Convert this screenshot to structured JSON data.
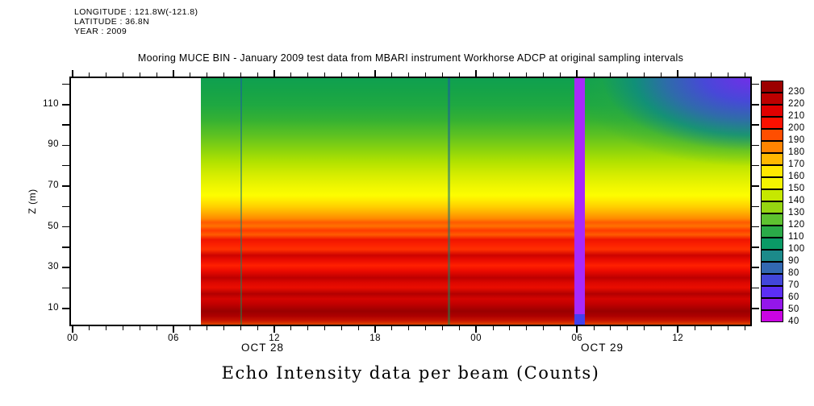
{
  "header": {
    "longitude": "LONGITUDE : 121.8W(-121.8)",
    "latitude": "LATITUDE : 36.8N",
    "year": "YEAR : 2009"
  },
  "title": "Mooring MUCE BIN - January 2009 test data from MBARI instrument Workhorse ADCP at original sampling intervals",
  "caption": "Echo Intensity data per beam (Counts)",
  "axes": {
    "y": {
      "label": "Z (m)",
      "major_ticks": [
        10,
        30,
        50,
        70,
        90,
        110
      ],
      "minor_ticks": [
        20,
        40,
        60,
        80,
        100,
        120
      ],
      "range_m": [
        2,
        123
      ]
    },
    "x": {
      "major_hours": [
        0,
        6,
        12,
        18,
        24,
        30,
        36
      ],
      "major_labels": [
        "00",
        "06",
        "12",
        "18",
        "00",
        "06",
        "12"
      ],
      "minor_interval_hours": 1,
      "total_hours": 40.4,
      "date_labels": [
        {
          "text": "OCT 28",
          "hour": 11.3
        },
        {
          "text": "OCT 29",
          "hour": 31.5
        }
      ]
    }
  },
  "colorbar": {
    "cells": [
      {
        "value": 230,
        "color": "#9c0000"
      },
      {
        "value": 220,
        "color": "#bc0000"
      },
      {
        "value": 210,
        "color": "#e00000"
      },
      {
        "value": 200,
        "color": "#fb1000"
      },
      {
        "value": 190,
        "color": "#ff4e00"
      },
      {
        "value": 180,
        "color": "#ff8400"
      },
      {
        "value": 170,
        "color": "#ffb800"
      },
      {
        "value": 160,
        "color": "#ffe800"
      },
      {
        "value": 150,
        "color": "#f4f400"
      },
      {
        "value": 140,
        "color": "#c6e800"
      },
      {
        "value": 130,
        "color": "#96d610"
      },
      {
        "value": 120,
        "color": "#5ec230"
      },
      {
        "value": 110,
        "color": "#2aaa48"
      },
      {
        "value": 100,
        "color": "#0a9a66"
      },
      {
        "value": 90,
        "color": "#1c8a8a"
      },
      {
        "value": 80,
        "color": "#3268b2"
      },
      {
        "value": 70,
        "color": "#4246da"
      },
      {
        "value": 60,
        "color": "#5c2ef4"
      },
      {
        "value": 50,
        "color": "#9416ea"
      },
      {
        "value": 40,
        "color": "#c904e2"
      }
    ]
  },
  "chart_data": {
    "type": "heatmap",
    "title": "Mooring MUCE BIN - January 2009 test data from MBARI instrument Workhorse ADCP at original sampling intervals",
    "subtitle_lines": [
      "LONGITUDE : 121.8W(-121.8)",
      "LATITUDE : 36.8N",
      "YEAR : 2009"
    ],
    "quantity": "Echo Intensity data per beam (Counts)",
    "xlabel_dates": [
      "OCT 28",
      "OCT 29"
    ],
    "x_range": [
      "OCT 28 00:00",
      "OCT 29 ~16:30"
    ],
    "ylabel": "Z (m)",
    "y_range_m": [
      2,
      123
    ],
    "colorbar_range_counts": [
      40,
      230
    ],
    "colorbar_step": 10,
    "data_start": "OCT 28 ~07:40 (white/no data before)",
    "missing_data_intervals": [
      {
        "from": "OCT 28 00:00",
        "to": "OCT 28 07:40",
        "rendered": "white"
      },
      {
        "from": "OCT 29 06:00",
        "to": "OCT 29 06:40",
        "rendered": "magenta fill stripe (~40-50 counts)"
      }
    ],
    "anomaly_lines_low_intensity": [
      "OCT 28 ~10:00",
      "OCT 28 ~22:20"
    ],
    "depth_profile_oct28_typical": {
      "z_m": [
        120,
        110,
        100,
        90,
        80,
        70,
        65,
        60,
        55,
        50,
        45,
        40,
        35,
        30,
        25,
        20,
        15,
        10,
        5
      ],
      "counts": [
        115,
        120,
        125,
        132,
        142,
        158,
        168,
        180,
        192,
        200,
        210,
        205,
        220,
        228,
        212,
        230,
        218,
        232,
        200
      ]
    },
    "depth_profile_oct29_late": {
      "z_m": [
        120,
        110,
        100,
        90,
        80,
        70,
        60,
        50,
        40,
        30,
        20,
        10,
        5
      ],
      "counts": [
        60,
        75,
        90,
        105,
        120,
        138,
        158,
        178,
        198,
        212,
        230,
        222,
        205
      ]
    },
    "legend_position": "right colorbar",
    "grid": false
  },
  "plot": {
    "no_data_color": "#ffffff",
    "stripe_color": "#a829fa",
    "stripe_bottom_color": "#4340ee",
    "bands": [
      {
        "p": 0,
        "c": "#0fa050"
      },
      {
        "p": 5,
        "c": "#15a348"
      },
      {
        "p": 11,
        "c": "#1fa841"
      },
      {
        "p": 17,
        "c": "#35b133"
      },
      {
        "p": 23,
        "c": "#5cc122"
      },
      {
        "p": 29,
        "c": "#8ad30e"
      },
      {
        "p": 34,
        "c": "#b2e200"
      },
      {
        "p": 39,
        "c": "#d4ec00"
      },
      {
        "p": 44,
        "c": "#eef600"
      },
      {
        "p": 47.5,
        "c": "#fdfd00"
      },
      {
        "p": 50,
        "c": "#ffe600"
      },
      {
        "p": 52.5,
        "c": "#ffcb00"
      },
      {
        "p": 55,
        "c": "#ffa800"
      },
      {
        "p": 57,
        "c": "#ff8a00"
      },
      {
        "p": 58.5,
        "c": "#ff5a00"
      },
      {
        "p": 60,
        "c": "#ff7200"
      },
      {
        "p": 61.8,
        "c": "#ff3a00"
      },
      {
        "p": 63.5,
        "c": "#ff5c00"
      },
      {
        "p": 65.5,
        "c": "#ef1400"
      },
      {
        "p": 67.5,
        "c": "#fb2000"
      },
      {
        "p": 69.5,
        "c": "#ff3000"
      },
      {
        "p": 71.9,
        "c": "#cd0300"
      },
      {
        "p": 74,
        "c": "#ec0d00"
      },
      {
        "p": 76,
        "c": "#ff2000"
      },
      {
        "p": 78,
        "c": "#ee0c00"
      },
      {
        "p": 81,
        "c": "#bd0000"
      },
      {
        "p": 83,
        "c": "#dd0700"
      },
      {
        "p": 85,
        "c": "#e90d00"
      },
      {
        "p": 87.5,
        "c": "#b20000"
      },
      {
        "p": 89.5,
        "c": "#d40400"
      },
      {
        "p": 91.5,
        "c": "#c30000"
      },
      {
        "p": 94.5,
        "c": "#9a0000"
      },
      {
        "p": 96.5,
        "c": "#ad0000"
      },
      {
        "p": 98.2,
        "c": "#c51200"
      },
      {
        "p": 100,
        "c": "#e04400"
      }
    ],
    "blue_patch_shape": "140% 46% at 100% 0%",
    "blue_patch": [
      {
        "p": 0,
        "c": "rgba(112,47,232,1)"
      },
      {
        "p": 20,
        "c": "rgba(72,72,216,1)"
      },
      {
        "p": 36,
        "c": "rgba(48,104,176,0.95)"
      },
      {
        "p": 50,
        "c": "rgba(16,140,128,0.85)"
      },
      {
        "p": 64,
        "c": "rgba(40,168,72,0.35)"
      },
      {
        "p": 78,
        "c": "rgba(40,168,72,0)"
      }
    ],
    "anomaly_line_colors": {
      "top": "rgba(25,95,160,0.6)",
      "bottom": "rgba(20,140,75,0.5)"
    }
  }
}
